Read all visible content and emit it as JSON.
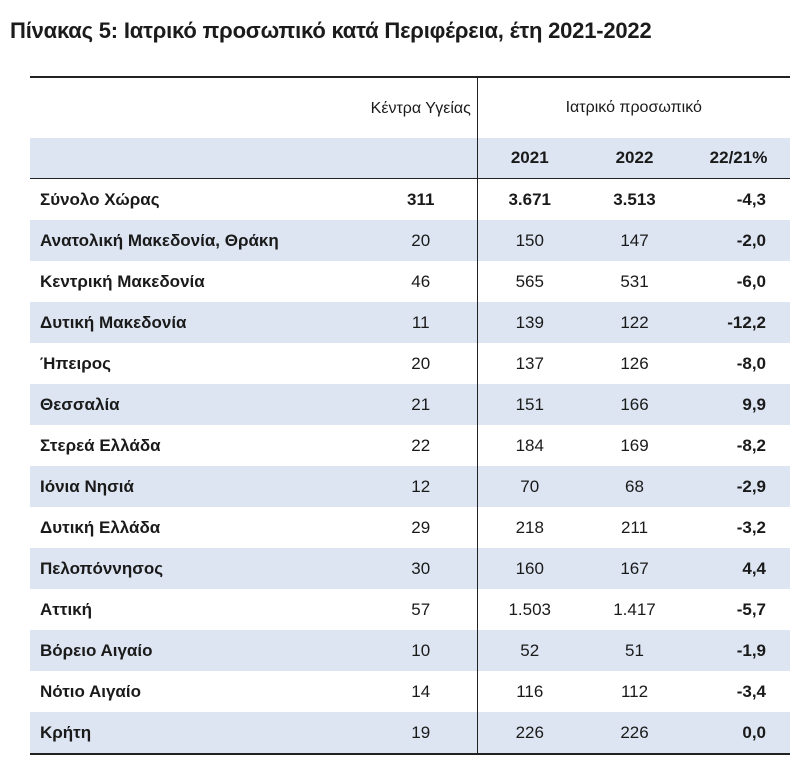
{
  "title": "Πίνακας 5: Ιατρικό προσωπικό κατά Περιφέρεια, έτη 2021-2022",
  "headers": {
    "centers": "Κέντρα Υγείας",
    "group": "Ιατρικό προσωπικό",
    "y2021": "2021",
    "y2022": "2022",
    "change": "22/21%"
  },
  "rows": [
    {
      "region": "Σύνολο Χώρας",
      "centers": "311",
      "y2021": "3.671",
      "y2022": "3.513",
      "change": "-4,3"
    },
    {
      "region": "Ανατολική Μακεδονία, Θράκη",
      "centers": "20",
      "y2021": "150",
      "y2022": "147",
      "change": "-2,0"
    },
    {
      "region": "Κεντρική Μακεδονία",
      "centers": "46",
      "y2021": "565",
      "y2022": "531",
      "change": "-6,0"
    },
    {
      "region": "Δυτική Μακεδονία",
      "centers": "11",
      "y2021": "139",
      "y2022": "122",
      "change": "-12,2"
    },
    {
      "region": "Ήπειρος",
      "centers": "20",
      "y2021": "137",
      "y2022": "126",
      "change": "-8,0"
    },
    {
      "region": "Θεσσαλία",
      "centers": "21",
      "y2021": "151",
      "y2022": "166",
      "change": "9,9"
    },
    {
      "region": "Στερεά Ελλάδα",
      "centers": "22",
      "y2021": "184",
      "y2022": "169",
      "change": "-8,2"
    },
    {
      "region": "Ιόνια Νησιά",
      "centers": "12",
      "y2021": "70",
      "y2022": "68",
      "change": "-2,9"
    },
    {
      "region": "Δυτική Ελλάδα",
      "centers": "29",
      "y2021": "218",
      "y2022": "211",
      "change": "-3,2"
    },
    {
      "region": "Πελοπόννησος",
      "centers": "30",
      "y2021": "160",
      "y2022": "167",
      "change": "4,4"
    },
    {
      "region": "Αττική",
      "centers": "57",
      "y2021": "1.503",
      "y2022": "1.417",
      "change": "-5,7"
    },
    {
      "region": "Βόρειο Αιγαίο",
      "centers": "10",
      "y2021": "52",
      "y2022": "51",
      "change": "-1,9"
    },
    {
      "region": "Νότιο Αιγαίο",
      "centers": "14",
      "y2021": "116",
      "y2022": "112",
      "change": "-3,4"
    },
    {
      "region": "Κρήτη",
      "centers": "19",
      "y2021": "226",
      "y2022": "226",
      "change": "0,0"
    }
  ],
  "colors": {
    "band": "#dde5f2",
    "rule": "#222222"
  }
}
